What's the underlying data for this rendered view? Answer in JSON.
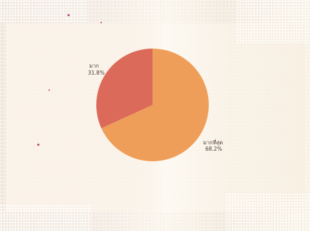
{
  "chart_data": {
    "type": "pie",
    "slices": [
      {
        "label": "มากที่สุด",
        "value": 68.2,
        "value_label": "68.2%",
        "color": "#ef9e59"
      },
      {
        "label": "มาก",
        "value": 31.8,
        "value_label": "31.8%",
        "color": "#dc6a5a"
      }
    ]
  }
}
